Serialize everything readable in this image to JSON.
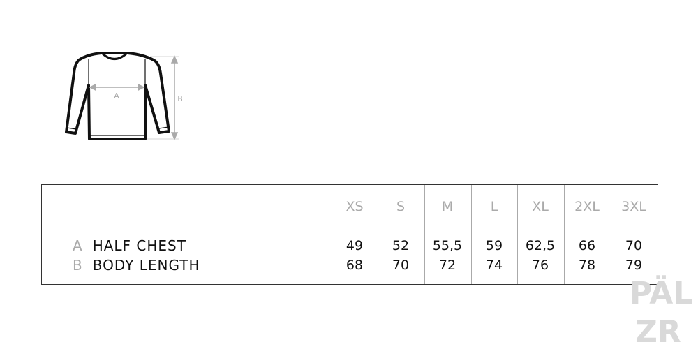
{
  "diagram": {
    "label_a": "A",
    "label_b": "B"
  },
  "table": {
    "sizes": [
      "XS",
      "S",
      "M",
      "L",
      "XL",
      "2XL",
      "3XL"
    ],
    "rows": [
      {
        "letter": "A",
        "name": "HALF CHEST",
        "values": [
          "49",
          "52",
          "55,5",
          "59",
          "62,5",
          "66",
          "70"
        ]
      },
      {
        "letter": "B",
        "name": "BODY LENGTH",
        "values": [
          "68",
          "70",
          "72",
          "74",
          "76",
          "78",
          "79"
        ]
      }
    ]
  },
  "watermark": "PÄLZR",
  "colors": {
    "line": "#111111",
    "measure": "#aaaaaa",
    "watermark": "#d9d9d9"
  }
}
